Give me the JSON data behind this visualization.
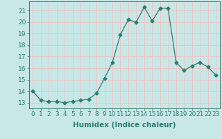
{
  "x": [
    0,
    1,
    2,
    3,
    4,
    5,
    6,
    7,
    8,
    9,
    10,
    11,
    12,
    13,
    14,
    15,
    16,
    17,
    18,
    19,
    20,
    21,
    22,
    23
  ],
  "y": [
    14.0,
    13.2,
    13.1,
    13.1,
    13.0,
    13.1,
    13.2,
    13.3,
    13.8,
    15.1,
    16.5,
    18.9,
    20.2,
    20.0,
    21.3,
    20.1,
    21.2,
    21.2,
    16.5,
    15.8,
    16.2,
    16.5,
    16.1,
    15.4
  ],
  "line_color": "#2e7d6e",
  "marker": "D",
  "marker_size": 2.5,
  "bg_color": "#c8e8e8",
  "grid_color": "#e8c8c8",
  "xlabel": "Humidex (Indice chaleur)",
  "ylim": [
    12.5,
    21.8
  ],
  "xlim": [
    -0.5,
    23.5
  ],
  "yticks": [
    13,
    14,
    15,
    16,
    17,
    18,
    19,
    20,
    21
  ],
  "xticks": [
    0,
    1,
    2,
    3,
    4,
    5,
    6,
    7,
    8,
    9,
    10,
    11,
    12,
    13,
    14,
    15,
    16,
    17,
    18,
    19,
    20,
    21,
    22,
    23
  ],
  "tick_color": "#2e7d6e",
  "label_color": "#2e7d6e",
  "fontsize_xlabel": 7.5,
  "fontsize_ticks": 6.5
}
